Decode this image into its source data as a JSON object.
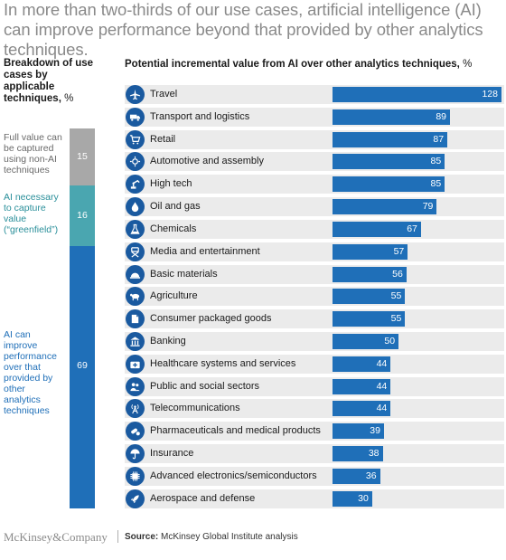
{
  "header": {
    "title": "In more than two-thirds of our use cases, artificial intelligence (AI) can improve performance beyond that provided by other analytics techniques."
  },
  "left_panel": {
    "heading": "Breakdown of use cases by applicable techniques,",
    "unit": "%",
    "segments": [
      {
        "label": "Full value can be captured using non-AI techniques",
        "value": 15,
        "color": "#a8a8a8",
        "label_color": "#6a6a6a"
      },
      {
        "label": "AI necessary to capture value (“greenfield”)",
        "value": 16,
        "color": "#4aa6b0",
        "label_color": "#2a8f9a"
      },
      {
        "label": "AI can improve performance over that provided by other analytics techniques",
        "value": 69,
        "color": "#1f6fb8",
        "label_color": "#1f6fb8"
      }
    ]
  },
  "chart_data": {
    "type": "bar",
    "orientation": "horizontal",
    "title": "Potential incremental value from AI over other analytics techniques,",
    "unit": "%",
    "categories": [
      "Travel",
      "Transport and logistics",
      "Retail",
      "Automotive and assembly",
      "High tech",
      "Oil and gas",
      "Chemicals",
      "Media and entertainment",
      "Basic materials",
      "Agriculture",
      "Consumer packaged goods",
      "Banking",
      "Healthcare systems and services",
      "Public and social sectors",
      "Telecommunications",
      "Pharmaceuticals and medical products",
      "Insurance",
      "Advanced electronics/semiconductors",
      "Aerospace and defense"
    ],
    "values": [
      128,
      89,
      87,
      85,
      85,
      79,
      67,
      57,
      56,
      55,
      55,
      50,
      44,
      44,
      44,
      39,
      38,
      36,
      30
    ],
    "icons": [
      "airplane-icon",
      "truck-icon",
      "shopping-cart-icon",
      "car-parts-icon",
      "robot-arm-icon",
      "oil-drop-icon",
      "flask-icon",
      "director-chair-icon",
      "hard-hat-icon",
      "cow-icon",
      "package-icon",
      "bank-icon",
      "medical-bag-icon",
      "people-icon",
      "antenna-icon",
      "pills-icon",
      "umbrella-icon",
      "microchip-icon",
      "rocket-icon"
    ],
    "xlim": [
      0,
      128
    ],
    "bar_color": "#1f6fb8",
    "band_color": "#ebebeb"
  },
  "footer": {
    "brand": "McKinsey&Company",
    "source_label": "Source:",
    "source_text": "McKinsey Global Institute analysis"
  }
}
